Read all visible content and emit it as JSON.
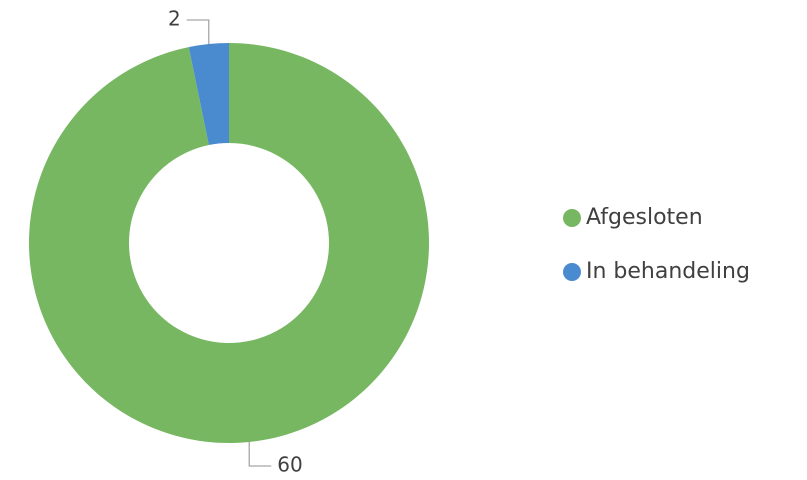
{
  "chart_data": {
    "type": "doughnut",
    "categories": [
      "Afgesloten",
      "In behandeling"
    ],
    "values": [
      60,
      2
    ],
    "colors": [
      "#77b762",
      "#4a8bd0"
    ],
    "legend": "right"
  }
}
